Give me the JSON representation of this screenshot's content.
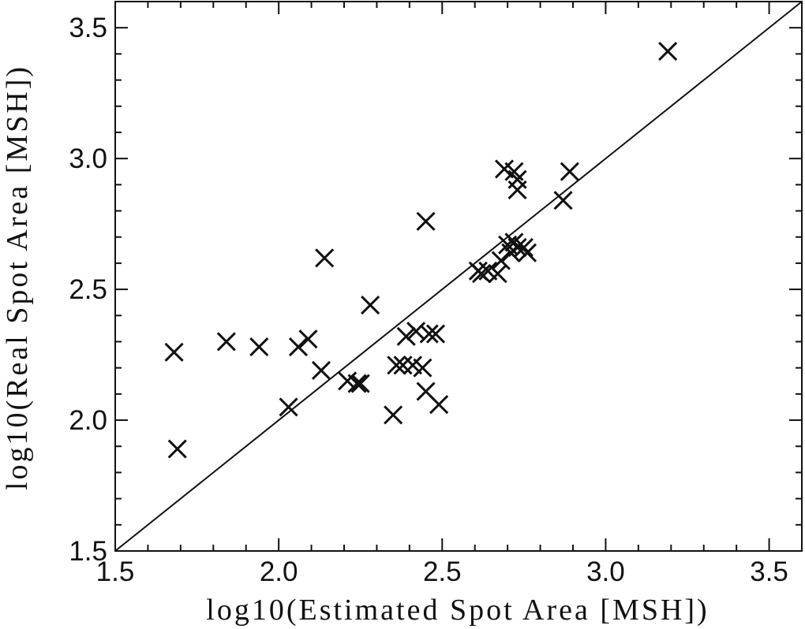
{
  "chart_data": {
    "type": "scatter",
    "title": "",
    "xlabel": "log10(Estimated Spot Area [MSH])",
    "ylabel": "log10(Real Spot Area [MSH])",
    "xlim": [
      1.5,
      3.6
    ],
    "ylim": [
      1.5,
      3.6
    ],
    "x_ticks": [
      "1.5",
      "2.0",
      "2.5",
      "3.0",
      "3.5"
    ],
    "y_ticks": [
      "1.5",
      "2.0",
      "2.5",
      "3.0",
      "3.5"
    ],
    "x_tick_values": [
      1.5,
      2.0,
      2.5,
      3.0,
      3.5
    ],
    "y_tick_values": [
      1.5,
      2.0,
      2.5,
      3.0,
      3.5
    ],
    "minor_step": 0.1,
    "grid": false,
    "marker": "x",
    "reference_line": "y = x",
    "color": "#111111",
    "points": [
      [
        1.68,
        2.26
      ],
      [
        1.69,
        1.89
      ],
      [
        1.84,
        2.3
      ],
      [
        1.94,
        2.28
      ],
      [
        2.03,
        2.05
      ],
      [
        2.06,
        2.28
      ],
      [
        2.09,
        2.31
      ],
      [
        2.13,
        2.19
      ],
      [
        2.14,
        2.62
      ],
      [
        2.21,
        2.15
      ],
      [
        2.24,
        2.14
      ],
      [
        2.25,
        2.14
      ],
      [
        2.28,
        2.44
      ],
      [
        2.35,
        2.02
      ],
      [
        2.36,
        2.21
      ],
      [
        2.38,
        2.21
      ],
      [
        2.39,
        2.32
      ],
      [
        2.41,
        2.21
      ],
      [
        2.42,
        2.34
      ],
      [
        2.44,
        2.2
      ],
      [
        2.45,
        2.11
      ],
      [
        2.45,
        2.76
      ],
      [
        2.46,
        2.33
      ],
      [
        2.48,
        2.33
      ],
      [
        2.49,
        2.06
      ],
      [
        2.61,
        2.57
      ],
      [
        2.62,
        2.56
      ],
      [
        2.64,
        2.57
      ],
      [
        2.67,
        2.56
      ],
      [
        2.68,
        2.61
      ],
      [
        2.7,
        2.67
      ],
      [
        2.71,
        2.64
      ],
      [
        2.72,
        2.68
      ],
      [
        2.73,
        2.66
      ],
      [
        2.75,
        2.66
      ],
      [
        2.76,
        2.64
      ],
      [
        2.69,
        2.96
      ],
      [
        2.72,
        2.95
      ],
      [
        2.73,
        2.92
      ],
      [
        2.73,
        2.88
      ],
      [
        2.87,
        2.84
      ],
      [
        2.89,
        2.95
      ],
      [
        3.19,
        3.41
      ]
    ]
  }
}
